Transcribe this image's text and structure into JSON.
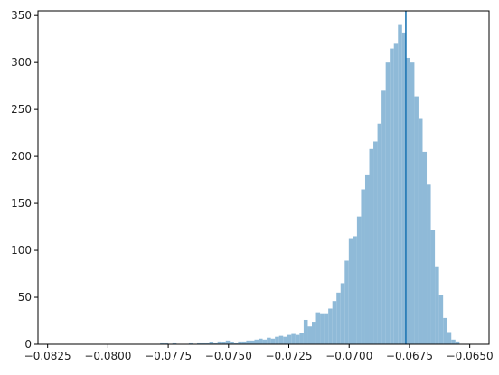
{
  "chart_data": {
    "type": "bar",
    "title": "",
    "xlabel": "",
    "ylabel": "",
    "xlim": [
      -0.0829,
      -0.0642
    ],
    "ylim": [
      0,
      355
    ],
    "x_ticks": [
      -0.0825,
      -0.08,
      -0.0775,
      -0.075,
      -0.0725,
      -0.07,
      -0.0675,
      -0.065
    ],
    "x_tick_labels": [
      "−0.0825",
      "−0.0800",
      "−0.0775",
      "−0.0750",
      "−0.0725",
      "−0.0700",
      "−0.0675",
      "−0.0650"
    ],
    "y_ticks": [
      0,
      50,
      100,
      150,
      200,
      250,
      300,
      350
    ],
    "y_tick_labels": [
      "0",
      "50",
      "100",
      "150",
      "200",
      "250",
      "300",
      "350"
    ],
    "bar_color": "#8fbad8",
    "vline_color": "#1f77b4",
    "vline_x": -0.06765,
    "bin_width": 0.00017,
    "bins": [
      {
        "x": -0.07775,
        "y": 1
      },
      {
        "x": -0.07758,
        "y": 1
      },
      {
        "x": -0.07741,
        "y": 0
      },
      {
        "x": -0.07724,
        "y": 1
      },
      {
        "x": -0.07707,
        "y": 0
      },
      {
        "x": -0.0769,
        "y": 0
      },
      {
        "x": -0.07673,
        "y": 0
      },
      {
        "x": -0.07656,
        "y": 1
      },
      {
        "x": -0.07639,
        "y": 0
      },
      {
        "x": -0.07622,
        "y": 1
      },
      {
        "x": -0.07605,
        "y": 1
      },
      {
        "x": -0.07588,
        "y": 1
      },
      {
        "x": -0.07571,
        "y": 2
      },
      {
        "x": -0.07554,
        "y": 1
      },
      {
        "x": -0.07537,
        "y": 3
      },
      {
        "x": -0.0752,
        "y": 2
      },
      {
        "x": -0.07503,
        "y": 4
      },
      {
        "x": -0.07486,
        "y": 2
      },
      {
        "x": -0.07469,
        "y": 1
      },
      {
        "x": -0.07452,
        "y": 3
      },
      {
        "x": -0.07435,
        "y": 3
      },
      {
        "x": -0.07418,
        "y": 4
      },
      {
        "x": -0.07401,
        "y": 4
      },
      {
        "x": -0.07384,
        "y": 5
      },
      {
        "x": -0.07367,
        "y": 6
      },
      {
        "x": -0.0735,
        "y": 5
      },
      {
        "x": -0.07333,
        "y": 7
      },
      {
        "x": -0.07316,
        "y": 6
      },
      {
        "x": -0.07299,
        "y": 8
      },
      {
        "x": -0.07282,
        "y": 9
      },
      {
        "x": -0.07265,
        "y": 8
      },
      {
        "x": -0.07248,
        "y": 10
      },
      {
        "x": -0.07231,
        "y": 11
      },
      {
        "x": -0.07214,
        "y": 10
      },
      {
        "x": -0.07197,
        "y": 12
      },
      {
        "x": -0.0718,
        "y": 26
      },
      {
        "x": -0.07163,
        "y": 19
      },
      {
        "x": -0.07146,
        "y": 24
      },
      {
        "x": -0.07129,
        "y": 34
      },
      {
        "x": -0.07112,
        "y": 33
      },
      {
        "x": -0.07095,
        "y": 33
      },
      {
        "x": -0.07078,
        "y": 38
      },
      {
        "x": -0.07061,
        "y": 46
      },
      {
        "x": -0.07044,
        "y": 55
      },
      {
        "x": -0.07027,
        "y": 65
      },
      {
        "x": -0.0701,
        "y": 89
      },
      {
        "x": -0.06993,
        "y": 113
      },
      {
        "x": -0.06976,
        "y": 115
      },
      {
        "x": -0.06959,
        "y": 136
      },
      {
        "x": -0.06942,
        "y": 165
      },
      {
        "x": -0.06925,
        "y": 180
      },
      {
        "x": -0.06908,
        "y": 208
      },
      {
        "x": -0.06891,
        "y": 216
      },
      {
        "x": -0.06874,
        "y": 235
      },
      {
        "x": -0.06857,
        "y": 270
      },
      {
        "x": -0.0684,
        "y": 300
      },
      {
        "x": -0.06823,
        "y": 315
      },
      {
        "x": -0.06806,
        "y": 320
      },
      {
        "x": -0.06789,
        "y": 340
      },
      {
        "x": -0.06772,
        "y": 332
      },
      {
        "x": -0.06755,
        "y": 305
      },
      {
        "x": -0.06738,
        "y": 300
      },
      {
        "x": -0.06721,
        "y": 264
      },
      {
        "x": -0.06704,
        "y": 240
      },
      {
        "x": -0.06687,
        "y": 205
      },
      {
        "x": -0.0667,
        "y": 170
      },
      {
        "x": -0.06653,
        "y": 122
      },
      {
        "x": -0.06636,
        "y": 83
      },
      {
        "x": -0.06619,
        "y": 52
      },
      {
        "x": -0.06602,
        "y": 28
      },
      {
        "x": -0.06585,
        "y": 13
      },
      {
        "x": -0.06568,
        "y": 5
      },
      {
        "x": -0.06551,
        "y": 3
      }
    ]
  }
}
